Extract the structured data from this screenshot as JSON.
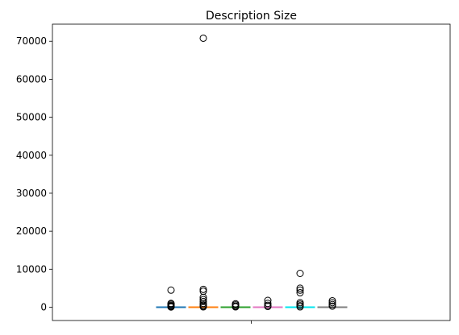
{
  "chart_data": {
    "type": "box",
    "title": "Description Size",
    "xlabel": "",
    "ylabel": "",
    "ylim": [
      -3500,
      74500
    ],
    "yticks": [
      0,
      10000,
      20000,
      30000,
      40000,
      50000,
      60000,
      70000
    ],
    "ytick_labels": [
      "0",
      "10000",
      "20000",
      "30000",
      "40000",
      "50000",
      "60000",
      "70000"
    ],
    "xticks": [
      ""
    ],
    "grid": false,
    "series": [
      {
        "color": "#1f77b4",
        "median": 0,
        "q1": 0,
        "q3": 0,
        "whisker_low": 0,
        "whisker_high": 0,
        "outliers": [
          4500,
          1000,
          800,
          500,
          300,
          150,
          50
        ]
      },
      {
        "color": "#ff7f0e",
        "median": 0,
        "q1": 0,
        "q3": 0,
        "whisker_low": 0,
        "whisker_high": 0,
        "outliers": [
          70800,
          4700,
          4200,
          2600,
          2000,
          1500,
          1000,
          600,
          300,
          100
        ]
      },
      {
        "color": "#2ca02c",
        "median": 0,
        "q1": 0,
        "q3": 0,
        "whisker_low": 0,
        "whisker_high": 0,
        "outliers": [
          900,
          600,
          300,
          100
        ]
      },
      {
        "color": "#e377c2",
        "median": 0,
        "q1": 0,
        "q3": 0,
        "whisker_low": 0,
        "whisker_high": 0,
        "outliers": [
          1800,
          1000,
          500,
          200
        ]
      },
      {
        "color": "#00e5ee",
        "median": 0,
        "q1": 0,
        "q3": 0,
        "whisker_low": 0,
        "whisker_high": 0,
        "outliers": [
          8900,
          5000,
          4500,
          3800,
          1200,
          800,
          400,
          100
        ]
      },
      {
        "color": "#7f7f7f",
        "median": 0,
        "q1": 0,
        "q3": 0,
        "whisker_low": 0,
        "whisker_high": 0,
        "outliers": [
          1700,
          1200,
          700,
          300
        ]
      }
    ]
  }
}
